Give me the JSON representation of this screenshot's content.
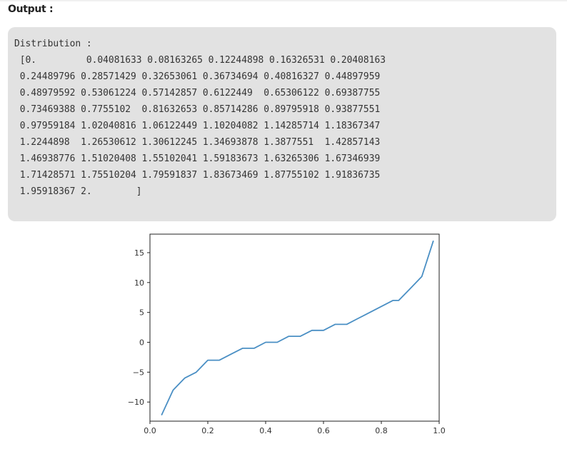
{
  "header": {
    "title": "Output :"
  },
  "console": {
    "lines": [
      "Distribution :",
      " [0.         0.04081633 0.08163265 0.12244898 0.16326531 0.20408163",
      " 0.24489796 0.28571429 0.32653061 0.36734694 0.40816327 0.44897959",
      " 0.48979592 0.53061224 0.57142857 0.6122449  0.65306122 0.69387755",
      " 0.73469388 0.7755102  0.81632653 0.85714286 0.89795918 0.93877551",
      " 0.97959184 1.02040816 1.06122449 1.10204082 1.14285714 1.18367347",
      " 1.2244898  1.26530612 1.30612245 1.34693878 1.3877551  1.42857143",
      " 1.46938776 1.51020408 1.55102041 1.59183673 1.63265306 1.67346939",
      " 1.71428571 1.75510204 1.79591837 1.83673469 1.87755102 1.91836735",
      " 1.95918367 2.        ]"
    ]
  },
  "chart_data": {
    "type": "line",
    "xlim": [
      0.0,
      1.0
    ],
    "ylim": [
      -13.2,
      18.1
    ],
    "x_ticks": [
      "0.0",
      "0.2",
      "0.4",
      "0.6",
      "0.8",
      "1.0"
    ],
    "y_ticks": [
      "15",
      "10",
      "5",
      "0",
      "−5",
      "−10"
    ],
    "x_tick_values": [
      0.0,
      0.2,
      0.4,
      0.6,
      0.8,
      1.0
    ],
    "y_tick_values": [
      15,
      10,
      5,
      0,
      -5,
      -10
    ],
    "grid": false,
    "line_color": "#4a8fc4",
    "series": [
      {
        "x": [
          0.04,
          0.08,
          0.12,
          0.16,
          0.2,
          0.24,
          0.28,
          0.32,
          0.36,
          0.4,
          0.44,
          0.48,
          0.52,
          0.56,
          0.6,
          0.64,
          0.68,
          0.72,
          0.76,
          0.8,
          0.84,
          0.86,
          0.9,
          0.94,
          0.98
        ],
        "y": [
          -12.2,
          -8,
          -6,
          -5,
          -3,
          -3,
          -2,
          -1,
          -1,
          0,
          0,
          1,
          1,
          2,
          2,
          3,
          3,
          4,
          5,
          6,
          7,
          7,
          9,
          11,
          17
        ]
      }
    ]
  }
}
